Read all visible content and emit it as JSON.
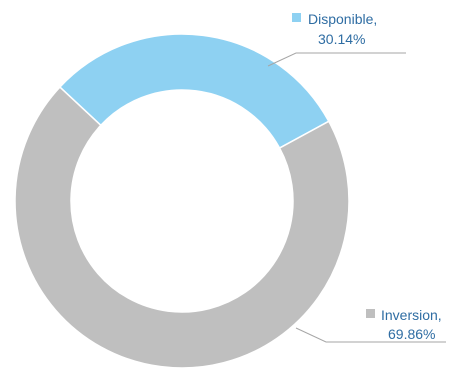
{
  "chart_data": {
    "type": "pie",
    "style": "donut",
    "title": "",
    "series": [
      {
        "name": "Disponible",
        "value": 30.14,
        "value_label": "30.14%",
        "color": "#8ED1F2"
      },
      {
        "name": "Inversion",
        "value": 69.86,
        "value_label": "69.86%",
        "color": "#BFBFBF"
      }
    ],
    "label_color": "#2F6DA3",
    "leader_line_color": "#A6A6A6",
    "legend": "none",
    "data_labels": "outside with leader lines, category name and percentage"
  }
}
